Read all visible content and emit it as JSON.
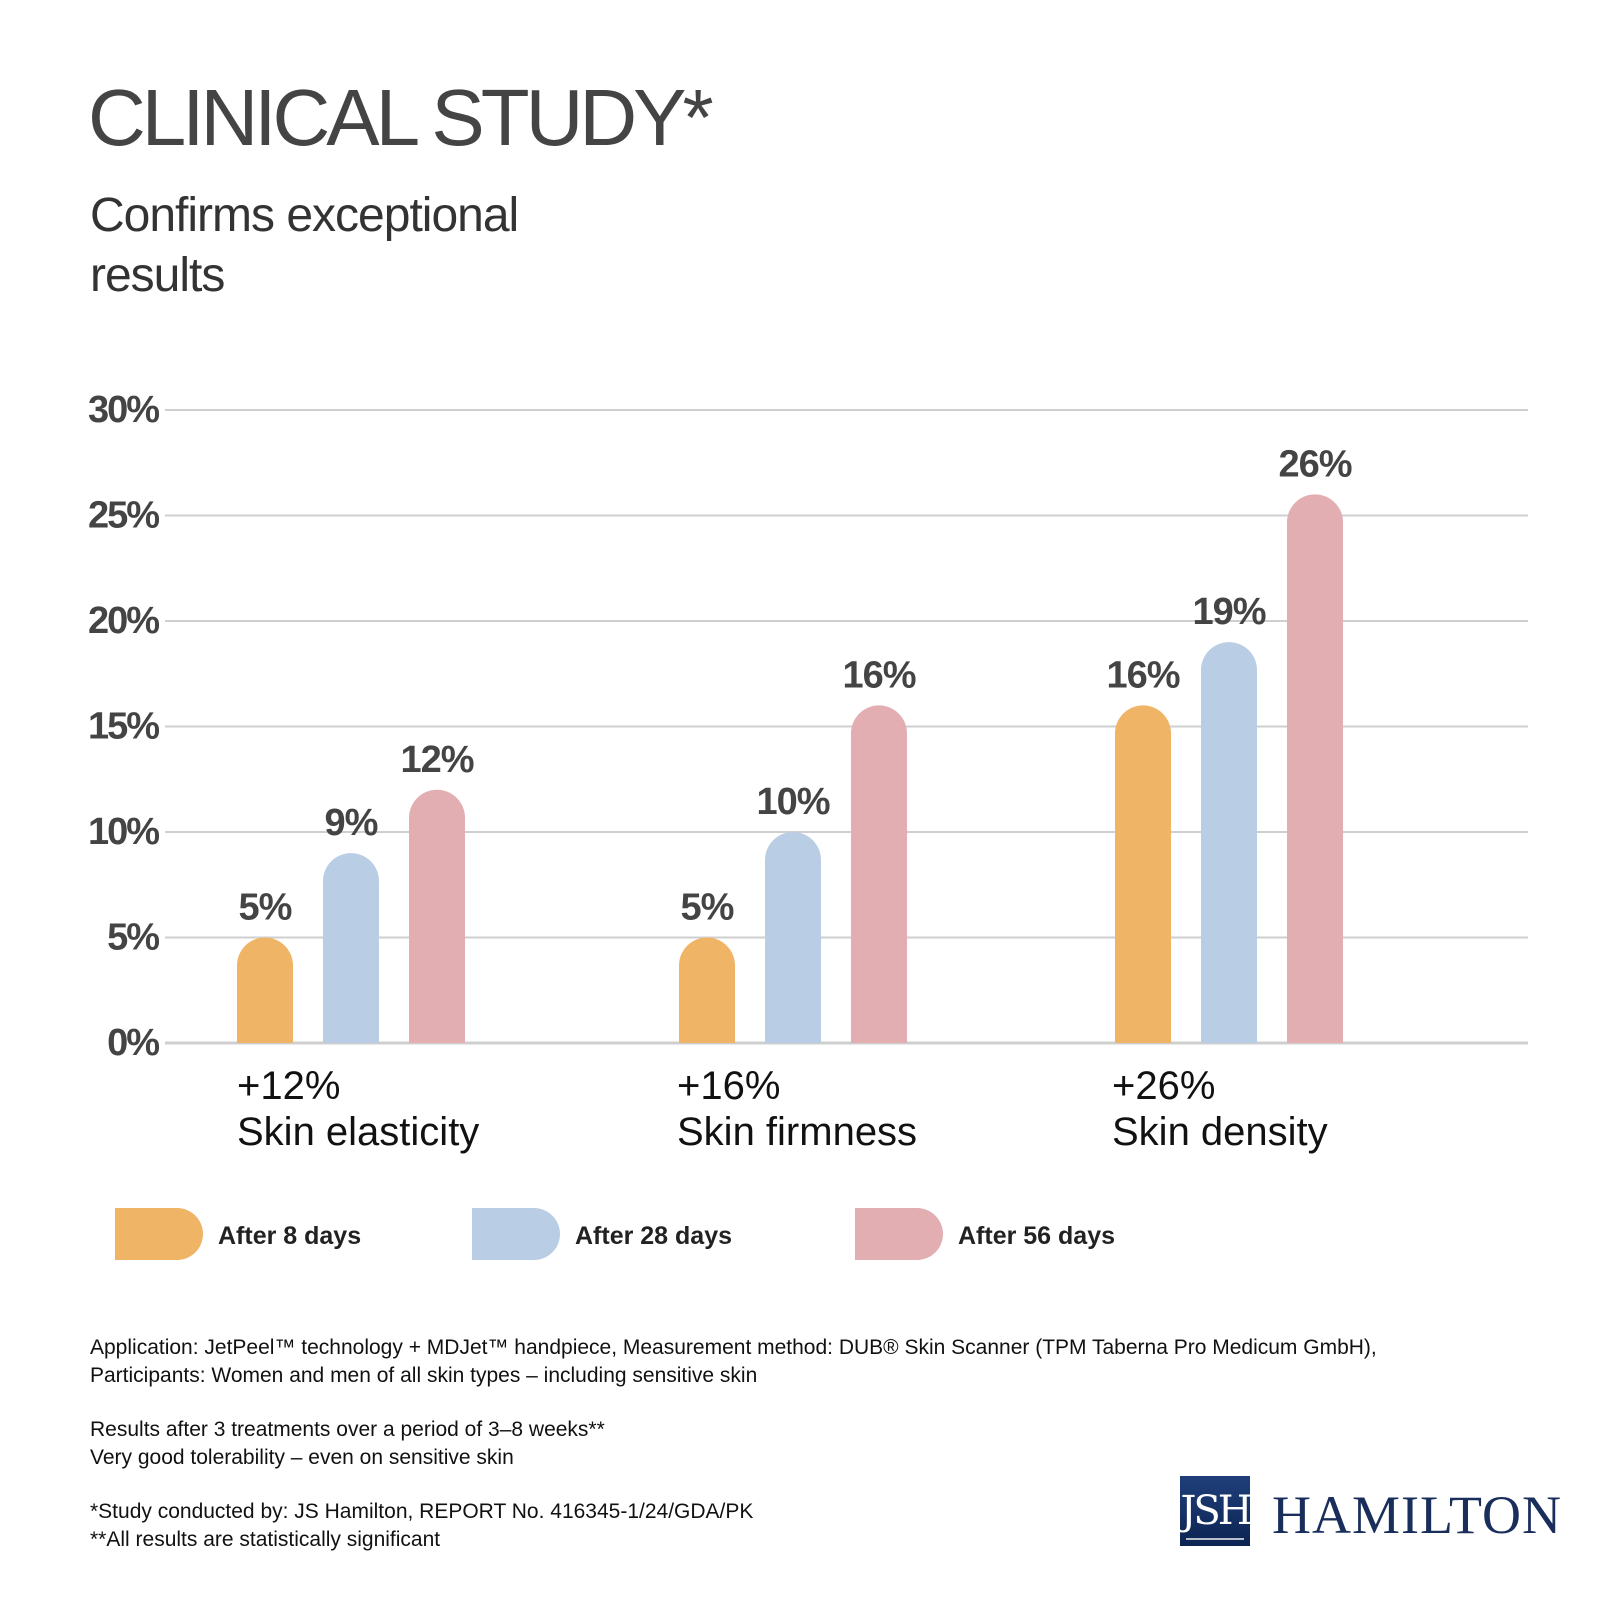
{
  "header": {
    "title": "CLINICAL STUDY*",
    "subtitle": "Confirms exceptional results"
  },
  "chart_data": {
    "type": "bar",
    "ylim": [
      0,
      30
    ],
    "y_ticks": [
      "0%",
      "5%",
      "10%",
      "15%",
      "20%",
      "25%",
      "30%"
    ],
    "grid": true,
    "categories": [
      "Skin elasticity",
      "Skin firmness",
      "Skin density"
    ],
    "category_totals": [
      "+12%",
      "+16%",
      "+26%"
    ],
    "series": [
      {
        "name": "After 8 days",
        "color": "#f0b466",
        "values": [
          5,
          5,
          16
        ],
        "labels": [
          "5%",
          "5%",
          "16%"
        ]
      },
      {
        "name": "After 28 days",
        "color": "#b9cde4",
        "values": [
          9,
          10,
          19
        ],
        "labels": [
          "9%",
          "10%",
          "19%"
        ]
      },
      {
        "name": "After 56 days",
        "color": "#e3aeb2",
        "values": [
          12,
          16,
          26
        ],
        "labels": [
          "12%",
          "16%",
          "26%"
        ]
      }
    ],
    "legend_position": "bottom"
  },
  "notes": {
    "application": "Application: JetPeel™ technology + MDJet™ handpiece, Measurement method: DUB® Skin Scanner (TPM Taberna Pro Medicum GmbH), Participants: Women and men of all skin types – including sensitive skin",
    "results": "Results after 3 treatments over a period of 3–8 weeks**",
    "tolerability": "Very good tolerability – even on sensitive skin",
    "study": "*Study conducted by: JS Hamilton, REPORT No. 416345-1/24/GDA/PK",
    "significance": "**All results are statistically significant"
  },
  "logo": {
    "mark": "JSH",
    "name": "HAMILTON"
  }
}
